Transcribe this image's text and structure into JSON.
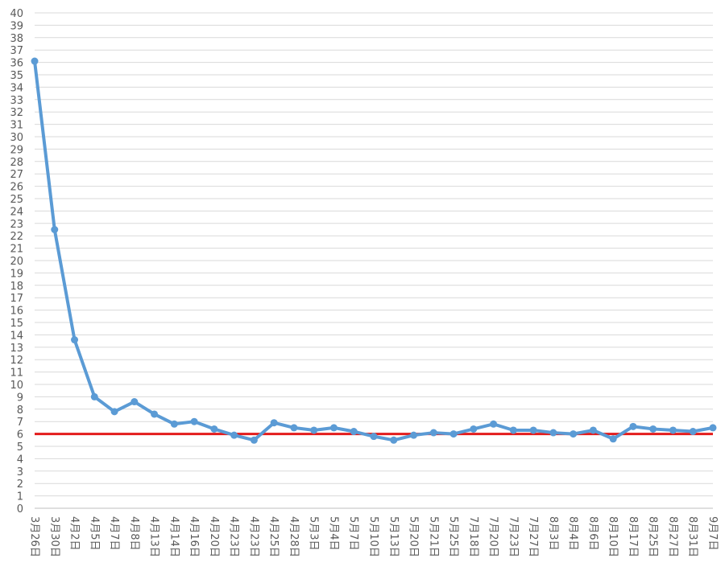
{
  "chart_data": {
    "type": "line",
    "title": "",
    "xlabel": "",
    "ylabel": "",
    "ylim": [
      0,
      40
    ],
    "ytick_step": 1,
    "grid": true,
    "categories": [
      "3月26日",
      "3月30日",
      "4月2日",
      "4月5日",
      "4月7日",
      "4月8日",
      "4月13日",
      "4月14日",
      "4月16日",
      "4月20日",
      "4月23日",
      "4月23日",
      "4月25日",
      "4月28日",
      "5月3日",
      "5月4日",
      "5月7日",
      "5月10日",
      "5月13日",
      "5月20日",
      "5月21日",
      "5月25日",
      "7月18日",
      "7月20日",
      "7月23日",
      "7月27日",
      "8月3日",
      "8月4日",
      "8月6日",
      "8月10日",
      "8月17日",
      "8月25日",
      "8月27日",
      "8月31日",
      "9月7日"
    ],
    "series": [
      {
        "values": [
          36.1,
          22.5,
          13.6,
          9.0,
          7.8,
          8.6,
          7.6,
          6.8,
          7.0,
          6.4,
          5.9,
          5.5,
          6.9,
          6.5,
          6.3,
          6.5,
          6.2,
          5.8,
          5.5,
          5.9,
          6.1,
          6.0,
          6.4,
          6.8,
          6.3,
          6.3,
          6.1,
          6.0,
          6.3,
          5.6,
          6.6,
          6.4,
          6.3,
          6.2,
          6.5
        ],
        "color": "#5b9bd5"
      }
    ],
    "reference_line": {
      "value": 6,
      "color": "#e31c1c"
    }
  }
}
